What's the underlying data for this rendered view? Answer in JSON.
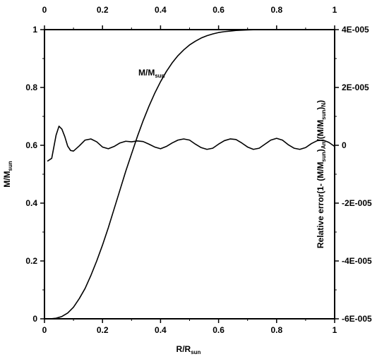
{
  "chart_data": {
    "type": "line",
    "colors": {
      "line": "#000000",
      "background": "#ffffff"
    },
    "x_axis": {
      "label_main": "R/R",
      "label_sub": "sun",
      "range": [
        0,
        1
      ],
      "ticks": [
        {
          "v": 0,
          "label": "0"
        },
        {
          "v": 0.2,
          "label": "0.2"
        },
        {
          "v": 0.4,
          "label": "0.4"
        },
        {
          "v": 0.6,
          "label": "0.6"
        },
        {
          "v": 0.8,
          "label": "0.8"
        },
        {
          "v": 1,
          "label": "1"
        }
      ]
    },
    "y_left": {
      "label_main": "M/M",
      "label_sub": "sun",
      "range": [
        0,
        1
      ],
      "ticks": [
        {
          "v": 0,
          "label": "0"
        },
        {
          "v": 0.2,
          "label": "0.2"
        },
        {
          "v": 0.4,
          "label": "0.4"
        },
        {
          "v": 0.6,
          "label": "0.6"
        },
        {
          "v": 0.8,
          "label": "0.8"
        },
        {
          "v": 1,
          "label": "1"
        }
      ]
    },
    "y_right": {
      "label_parts": [
        {
          "t": "Relative error(1- (M/M",
          "sub": false
        },
        {
          "t": "sun",
          "sub": true
        },
        {
          "t": ")",
          "sub": false
        },
        {
          "t": "An",
          "sub": true
        },
        {
          "t": "/(M/M",
          "sub": false
        },
        {
          "t": "sun",
          "sub": true
        },
        {
          "t": ")",
          "sub": false
        },
        {
          "t": "N",
          "sub": true
        },
        {
          "t": ")",
          "sub": false
        }
      ],
      "range": [
        -6e-05,
        4e-05
      ],
      "ticks": [
        {
          "v": 4e-05,
          "label": "4E-005"
        },
        {
          "v": 2e-05,
          "label": "2E-005"
        },
        {
          "v": 0,
          "label": "0"
        },
        {
          "v": -2e-05,
          "label": "-2E-005"
        },
        {
          "v": -4e-05,
          "label": "-4E-005"
        },
        {
          "v": -6e-05,
          "label": "-6E-005"
        }
      ]
    },
    "series": [
      {
        "name_main": "M/M",
        "name_sub": "sun",
        "axis": "left",
        "x": [
          0,
          0.02,
          0.04,
          0.06,
          0.08,
          0.1,
          0.12,
          0.14,
          0.16,
          0.18,
          0.2,
          0.22,
          0.24,
          0.26,
          0.28,
          0.3,
          0.32,
          0.34,
          0.36,
          0.38,
          0.4,
          0.42,
          0.44,
          0.46,
          0.48,
          0.5,
          0.52,
          0.54,
          0.56,
          0.58,
          0.6,
          0.62,
          0.64,
          0.66,
          0.68,
          0.7,
          0.72,
          0.74,
          0.76,
          0.78,
          0.8,
          0.85,
          0.9,
          0.95,
          1.0
        ],
        "y": [
          0,
          0.0,
          0.002,
          0.008,
          0.02,
          0.04,
          0.07,
          0.105,
          0.15,
          0.2,
          0.255,
          0.315,
          0.38,
          0.445,
          0.51,
          0.57,
          0.63,
          0.685,
          0.735,
          0.78,
          0.82,
          0.855,
          0.885,
          0.91,
          0.93,
          0.947,
          0.96,
          0.971,
          0.979,
          0.985,
          0.99,
          0.993,
          0.995,
          0.997,
          0.998,
          0.999,
          0.9995,
          0.9998,
          0.9999,
          1.0,
          1.0,
          1.0,
          1.0,
          1.0,
          1.0
        ]
      },
      {
        "name_main": "",
        "axis": "right",
        "x": [
          0.01,
          0.025,
          0.04,
          0.05,
          0.06,
          0.07,
          0.08,
          0.09,
          0.1,
          0.12,
          0.14,
          0.16,
          0.18,
          0.2,
          0.22,
          0.24,
          0.26,
          0.28,
          0.3,
          0.32,
          0.34,
          0.36,
          0.38,
          0.4,
          0.42,
          0.44,
          0.46,
          0.48,
          0.5,
          0.52,
          0.54,
          0.56,
          0.58,
          0.6,
          0.62,
          0.64,
          0.66,
          0.68,
          0.7,
          0.72,
          0.74,
          0.76,
          0.78,
          0.8,
          0.82,
          0.84,
          0.86,
          0.88,
          0.9,
          0.92,
          0.94,
          0.96,
          0.98,
          1.0
        ],
        "y": [
          -5.5e-06,
          -4.5e-06,
          3.5e-06,
          6.6e-06,
          5.6e-06,
          3e-06,
          -3e-07,
          -1.8e-06,
          -2e-06,
          -2e-07,
          1.8e-06,
          2.2e-06,
          1.2e-06,
          -6e-07,
          -1.2e-06,
          -4e-07,
          8e-07,
          1.4e-06,
          1.2e-06,
          1.5e-06,
          1.3e-06,
          4e-07,
          -6e-07,
          -1.2e-06,
          -4e-07,
          8e-07,
          1.8e-06,
          2.2e-06,
          1.8e-06,
          4e-07,
          -8e-07,
          -1.4e-06,
          -1e-06,
          4e-07,
          1.6e-06,
          2.2e-06,
          2e-06,
          8e-07,
          -6e-07,
          -1.4e-06,
          -1e-06,
          4e-07,
          1.8e-06,
          2.4e-06,
          1.8e-06,
          2e-07,
          -1e-06,
          -1.4e-06,
          -8e-07,
          6e-07,
          1.6e-06,
          1.8e-06,
          1e-06,
          -4e-07
        ]
      }
    ]
  }
}
